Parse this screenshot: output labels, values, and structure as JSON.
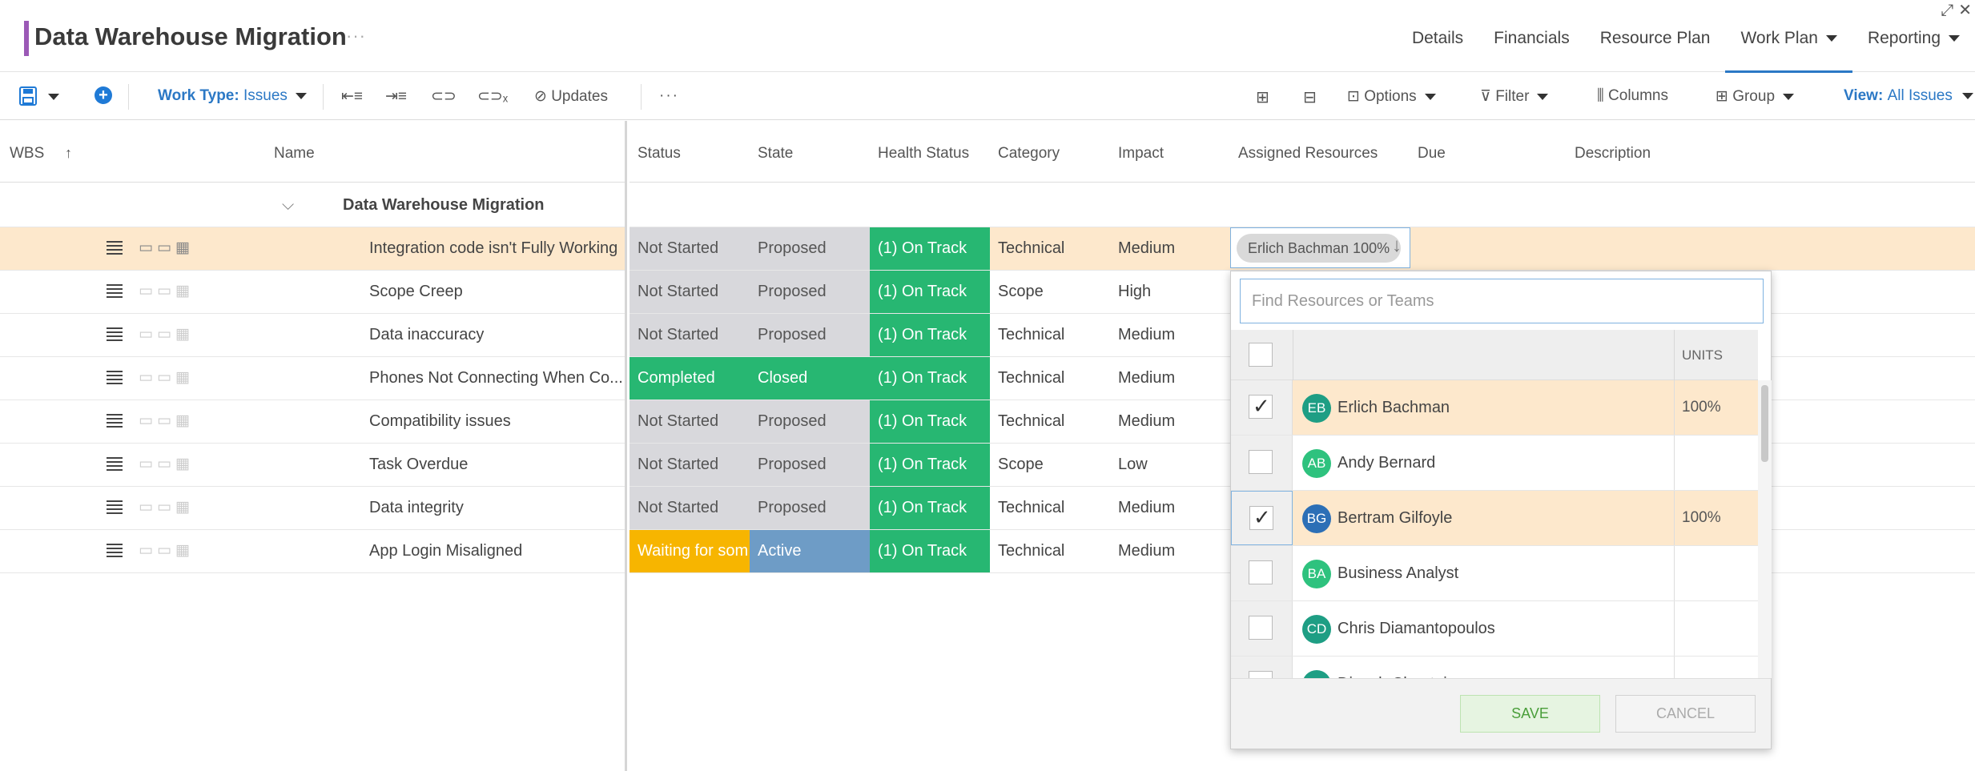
{
  "header": {
    "title": "Data Warehouse Migration",
    "title_more": "···",
    "nav": [
      "Details",
      "Financials",
      "Resource Plan",
      "Work Plan",
      "Reporting"
    ],
    "active_tab": "Work Plan"
  },
  "toolbar": {
    "work_type_label": "Work Type:",
    "work_type_value": "Issues",
    "updates_label": "Updates",
    "more": "···",
    "options_label": "Options",
    "filter_label": "Filter",
    "columns_label": "Columns",
    "group_label": "Group",
    "view_label": "View:",
    "view_value": "All Issues"
  },
  "left_columns": {
    "wbs": "WBS",
    "name": "Name"
  },
  "right_columns": {
    "status": "Status",
    "state": "State",
    "health": "Health Status",
    "category": "Category",
    "impact": "Impact",
    "assigned": "Assigned Resources",
    "due": "Due",
    "description": "Description"
  },
  "group": {
    "name": "Data Warehouse Migration"
  },
  "rows": [
    {
      "name": "Integration code isn't Fully Working",
      "status": "Not Started",
      "state": "Proposed",
      "health": "(1) On Track",
      "category": "Technical",
      "impact": "Medium"
    },
    {
      "name": "Scope Creep",
      "status": "Not Started",
      "state": "Proposed",
      "health": "(1) On Track",
      "category": "Scope",
      "impact": "High"
    },
    {
      "name": "Data inaccuracy",
      "status": "Not Started",
      "state": "Proposed",
      "health": "(1) On Track",
      "category": "Technical",
      "impact": "Medium"
    },
    {
      "name": "Phones Not Connecting When Co...",
      "status": "Completed",
      "state": "Closed",
      "health": "(1) On Track",
      "category": "Technical",
      "impact": "Medium"
    },
    {
      "name": "Compatibility issues",
      "status": "Not Started",
      "state": "Proposed",
      "health": "(1) On Track",
      "category": "Technical",
      "impact": "Medium"
    },
    {
      "name": "Task Overdue",
      "status": "Not Started",
      "state": "Proposed",
      "health": "(1) On Track",
      "category": "Scope",
      "impact": "Low"
    },
    {
      "name": "Data integrity",
      "status": "Not Started",
      "state": "Proposed",
      "health": "(1) On Track",
      "category": "Technical",
      "impact": "Medium"
    },
    {
      "name": "App Login Misaligned",
      "status": "Waiting for som",
      "state": "Active",
      "health": "(1) On Track",
      "category": "Technical",
      "impact": "Medium"
    }
  ],
  "resource_editor": {
    "chip": "Erlich Bachman 100%",
    "search_placeholder": "Find Resources or Teams",
    "units_header": "UNITS",
    "resources": [
      {
        "initials": "EB",
        "name": "Erlich Bachman",
        "units": "100%",
        "checked": true,
        "color": "#1e9e84"
      },
      {
        "initials": "AB",
        "name": "Andy Bernard",
        "units": "",
        "checked": false,
        "color": "#2ec27e"
      },
      {
        "initials": "BG",
        "name": "Bertram Gilfoyle",
        "units": "100%",
        "checked": true,
        "color": "#2c6fb6"
      },
      {
        "initials": "BA",
        "name": "Business Analyst",
        "units": "",
        "checked": false,
        "color": "#2ec27e"
      },
      {
        "initials": "CD",
        "name": "Chris Diamantopoulos",
        "units": "",
        "checked": false,
        "color": "#1e9e84"
      },
      {
        "initials": "DC",
        "name": "Dinesh Chugtai",
        "units": "",
        "checked": false,
        "color": "#1e9e84"
      }
    ],
    "save_label": "SAVE",
    "cancel_label": "CANCEL"
  }
}
